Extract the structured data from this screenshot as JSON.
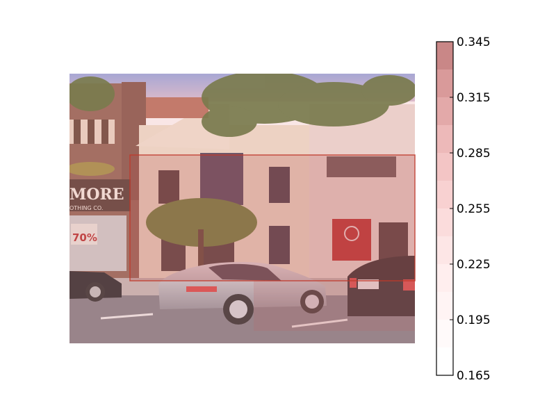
{
  "figure": {
    "photo_description_icons": [
      "street-scene-photo-icon",
      "silver-sports-car-icon",
      "black-sedan-icon",
      "storefront-icon",
      "tree-icon"
    ],
    "storefront_sign": {
      "sign_main": "MORE",
      "sign_sub": "OTHING CO.",
      "window_sign": "70%"
    },
    "highlight_color": "#c0392b",
    "overlay_tint": "#cc8f8f"
  },
  "colorbar": {
    "ticks": [
      "0.345",
      "0.315",
      "0.285",
      "0.255",
      "0.225",
      "0.195",
      "0.165"
    ],
    "min": 0.165,
    "max": 0.345,
    "levels": [
      {
        "value": 0.165,
        "color": "#ffffff"
      },
      {
        "value": 0.18,
        "color": "#fffafa"
      },
      {
        "value": 0.195,
        "color": "#fff4f4"
      },
      {
        "value": 0.21,
        "color": "#ffeeee"
      },
      {
        "value": 0.225,
        "color": "#fde6e6"
      },
      {
        "value": 0.24,
        "color": "#fbdcdc"
      },
      {
        "value": 0.255,
        "color": "#f8d1d1"
      },
      {
        "value": 0.27,
        "color": "#f3c5c5"
      },
      {
        "value": 0.285,
        "color": "#edb9b9"
      },
      {
        "value": 0.3,
        "color": "#e3a9a9"
      },
      {
        "value": 0.315,
        "color": "#d99a9a"
      },
      {
        "value": 0.33,
        "color": "#c98787"
      }
    ]
  }
}
